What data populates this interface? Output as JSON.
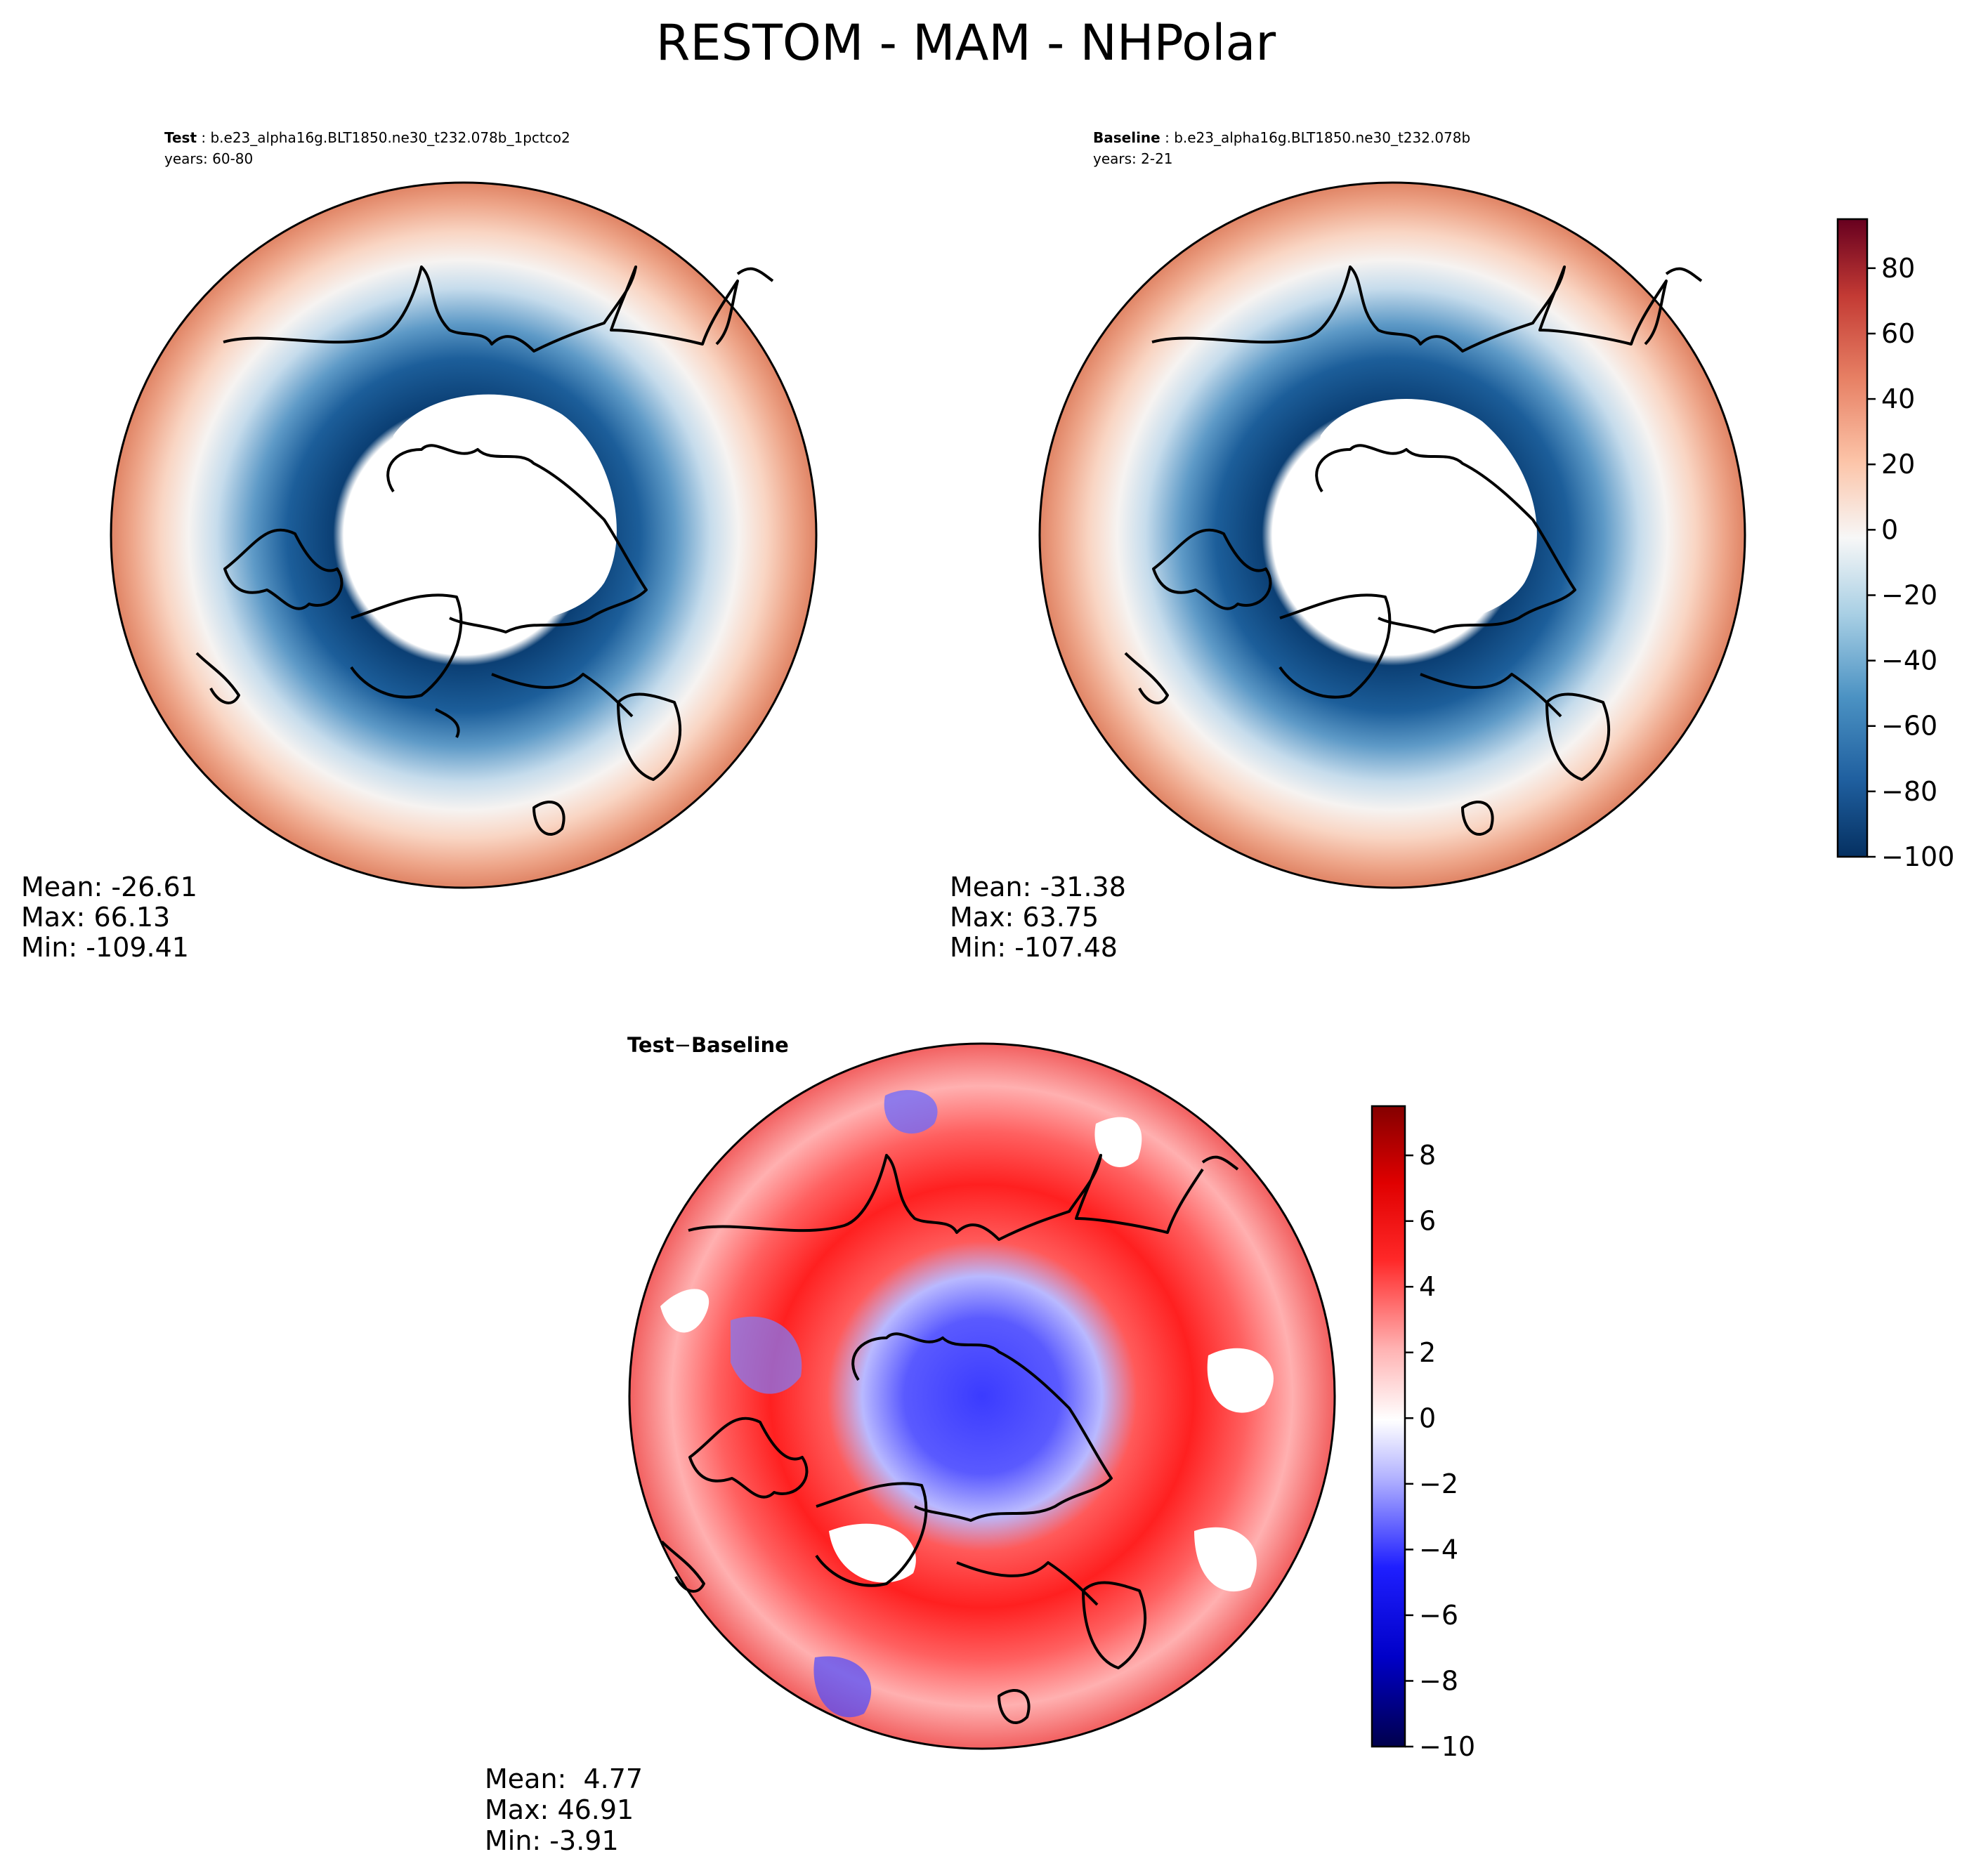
{
  "chart_data": [
    {
      "type": "heatmap",
      "projection": "north-polar-stereographic",
      "figure_title": "RESTOM - MAM - NHPolar",
      "panel": "Test",
      "case_label": "Test",
      "case_name": "b.e23_alpha16g.BLT1850.ne30_t232.078b_1pctco2",
      "years": "years: 60-80",
      "stats": {
        "mean": "Mean: -26.61",
        "max": "Max: 66.13",
        "min": "Min: -109.41"
      },
      "colormap": "RdBu_r",
      "pattern": "strong negative values (to about -100) over the Arctic basin and high-latitude land, positive values (20 to 60) toward the mid-latitude rim"
    },
    {
      "type": "heatmap",
      "projection": "north-polar-stereographic",
      "panel": "Baseline",
      "case_label": "Baseline",
      "case_name": "b.e23_alpha16g.BLT1850.ne30_t232.078b",
      "years": "years: 2-21",
      "stats": {
        "mean": "Mean: -31.38",
        "max": "Max: 63.75",
        "min": "Min: -107.48"
      },
      "colormap": "RdBu_r",
      "colorbar": {
        "range": [
          -100,
          95
        ],
        "ticks": [
          80,
          60,
          40,
          20,
          0,
          -20,
          -40,
          -60,
          -80,
          -100
        ],
        "tick_labels": [
          "80",
          "60",
          "40",
          "20",
          "0",
          "−20",
          "−40",
          "−60",
          "−80",
          "−100"
        ]
      }
    },
    {
      "type": "heatmap",
      "projection": "north-polar-stereographic",
      "panel": "Test - Baseline",
      "title_parts": [
        "Test",
        "−",
        "Baseline"
      ],
      "stats": {
        "mean": "Mean:  4.77",
        "max": "Max: 46.91",
        "min": "Min: -3.91"
      },
      "colormap": "seismic",
      "colorbar": {
        "range": [
          -10,
          9.5
        ],
        "ticks": [
          8,
          6,
          4,
          2,
          0,
          -2,
          -4,
          -6,
          -8,
          -10
        ],
        "tick_labels": [
          "8",
          "6",
          "4",
          "2",
          "0",
          "−2",
          "−4",
          "−6",
          "−8",
          "−10"
        ]
      },
      "pattern": "mostly positive differences (2 to 8) over oceans and mid-latitudes, negative (-2 to -6) over the central Arctic and Canadian archipelago"
    }
  ]
}
